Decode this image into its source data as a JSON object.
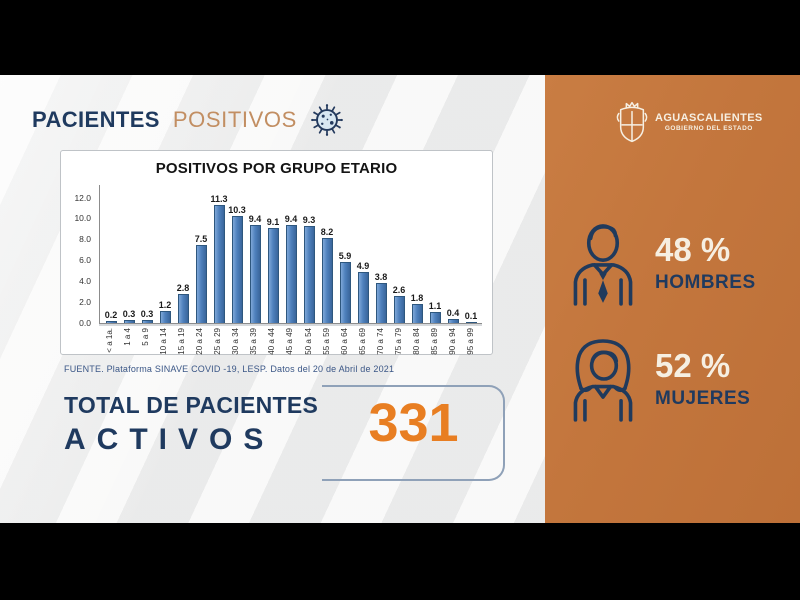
{
  "colors": {
    "navy": "#1F3A5F",
    "tan": "#C28E62",
    "panel_orange": "#C3763D",
    "accent_orange": "#E87E22",
    "bar_blue": "#4F81BD",
    "cream": "#F6EFE2"
  },
  "header": {
    "title_bold": "PACIENTES",
    "title_light": "POSITIVOS"
  },
  "chart_data": {
    "type": "bar",
    "title": "POSITIVOS POR GRUPO ETARIO",
    "categories": [
      "< a 1a.",
      "1 a 4",
      "5 a 9",
      "10 a 14",
      "15 a 19",
      "20 a 24",
      "25 a 29",
      "30 a 34",
      "35 a 39",
      "40 a 44",
      "45 a 49",
      "50 a 54",
      "55 a 59",
      "60 a 64",
      "65 a 69",
      "70 a 74",
      "75 a 79",
      "80 a 84",
      "85 a 89",
      "90 a 94",
      "95 a 99"
    ],
    "values": [
      0.2,
      0.3,
      0.3,
      1.2,
      2.8,
      7.5,
      11.3,
      10.3,
      9.4,
      9.1,
      9.4,
      9.3,
      8.2,
      5.9,
      4.9,
      3.8,
      2.6,
      1.8,
      1.1,
      0.4,
      0.1
    ],
    "xlabel": "",
    "ylabel": "",
    "ylim": [
      0,
      12
    ],
    "yticks": [
      "12.0",
      "10.0",
      "8.0",
      "6.0",
      "4.0",
      "2.0",
      "0.0"
    ],
    "grid": false,
    "legend": false,
    "value_labels": true
  },
  "source": "FUENTE. Plataforma SINAVE COVID -19, LESP. Datos del 20 de Abril de 2021",
  "total": {
    "line1": "TOTAL DE PACIENTES",
    "line2": "ACTIVOS",
    "value": "331"
  },
  "sidebar": {
    "logo_title": "AGUASCALIENTES",
    "logo_subtitle": "GOBIERNO DEL ESTADO",
    "stats": [
      {
        "percent": "48 %",
        "label": "HOMBRES"
      },
      {
        "percent": "52 %",
        "label": "MUJERES"
      }
    ]
  }
}
